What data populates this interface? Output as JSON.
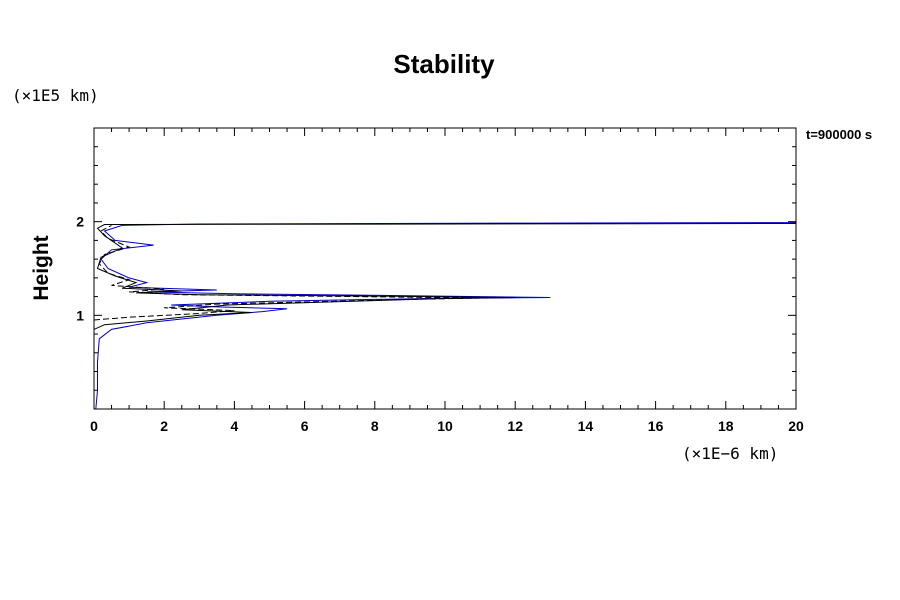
{
  "chart_data": {
    "type": "line",
    "title": "Stability",
    "ylabel": "Height",
    "xlabel": "",
    "y_unit": "(×1E5 km)",
    "x_unit": "(×1E−6 km)",
    "annotation": "t=900000 s",
    "xlim": [
      0,
      20
    ],
    "ylim": [
      0,
      3
    ],
    "x_ticks": [
      0,
      2,
      4,
      6,
      8,
      10,
      12,
      14,
      16,
      18,
      20
    ],
    "x_tick_labels": [
      "0",
      "2",
      "4",
      "6",
      "8",
      "10",
      "12",
      "14",
      "16",
      "18",
      "20"
    ],
    "y_ticks": [
      1,
      2
    ],
    "y_tick_labels": [
      "1",
      "2"
    ],
    "grid": false,
    "colors": {
      "axis": "#000000",
      "blue_series": "#0000cc",
      "black_series": "#000000",
      "dashed_series": "#000000"
    },
    "series": [
      {
        "style": "solid",
        "color": "#0000cc",
        "points": [
          [
            0.05,
            0.0
          ],
          [
            0.1,
            0.2
          ],
          [
            0.1,
            0.5
          ],
          [
            0.15,
            0.75
          ],
          [
            0.5,
            0.85
          ],
          [
            1.5,
            0.92
          ],
          [
            3.5,
            1.0
          ],
          [
            4.8,
            1.04
          ],
          [
            5.5,
            1.07
          ],
          [
            3.5,
            1.09
          ],
          [
            2.2,
            1.11
          ],
          [
            5.0,
            1.15
          ],
          [
            9.5,
            1.18
          ],
          [
            13.0,
            1.19
          ],
          [
            9.0,
            1.21
          ],
          [
            4.0,
            1.23
          ],
          [
            1.5,
            1.25
          ],
          [
            3.5,
            1.27
          ],
          [
            1.0,
            1.3
          ],
          [
            1.5,
            1.35
          ],
          [
            1.0,
            1.4
          ],
          [
            0.4,
            1.5
          ],
          [
            0.2,
            1.6
          ],
          [
            0.5,
            1.7
          ],
          [
            1.7,
            1.75
          ],
          [
            0.6,
            1.8
          ],
          [
            0.3,
            1.9
          ],
          [
            0.8,
            1.96
          ],
          [
            3.0,
            1.975
          ],
          [
            12.5,
            1.985
          ],
          [
            20.0,
            1.99
          ]
        ]
      },
      {
        "style": "solid",
        "color": "#000000",
        "points": [
          [
            0.0,
            0.85
          ],
          [
            0.3,
            0.9
          ],
          [
            1.5,
            0.94
          ],
          [
            3.0,
            1.0
          ],
          [
            4.5,
            1.03
          ],
          [
            2.5,
            1.06
          ],
          [
            3.8,
            1.11
          ],
          [
            10.0,
            1.18
          ],
          [
            12.0,
            1.19
          ],
          [
            8.0,
            1.205
          ],
          [
            3.0,
            1.22
          ],
          [
            1.2,
            1.24
          ],
          [
            2.5,
            1.26
          ],
          [
            0.8,
            1.29
          ],
          [
            1.2,
            1.35
          ],
          [
            0.6,
            1.42
          ],
          [
            0.1,
            1.5
          ],
          [
            0.2,
            1.62
          ],
          [
            0.8,
            1.72
          ],
          [
            0.3,
            1.85
          ],
          [
            0.1,
            1.93
          ],
          [
            0.3,
            1.97
          ],
          [
            20.0,
            1.98
          ]
        ]
      },
      {
        "style": "dashed",
        "color": "#000000",
        "points": [
          [
            0.0,
            0.95
          ],
          [
            1.0,
            0.98
          ],
          [
            3.0,
            1.02
          ],
          [
            4.0,
            1.05
          ],
          [
            2.0,
            1.08
          ],
          [
            3.5,
            1.12
          ],
          [
            9.0,
            1.17
          ],
          [
            11.0,
            1.185
          ],
          [
            7.5,
            1.2
          ],
          [
            2.5,
            1.22
          ],
          [
            1.0,
            1.25
          ],
          [
            2.0,
            1.28
          ],
          [
            0.5,
            1.32
          ],
          [
            1.0,
            1.38
          ],
          [
            0.4,
            1.45
          ],
          [
            0.15,
            1.55
          ],
          [
            0.3,
            1.65
          ],
          [
            1.0,
            1.73
          ],
          [
            0.4,
            1.82
          ],
          [
            0.2,
            1.9
          ],
          [
            0.5,
            1.96
          ]
        ]
      }
    ]
  }
}
